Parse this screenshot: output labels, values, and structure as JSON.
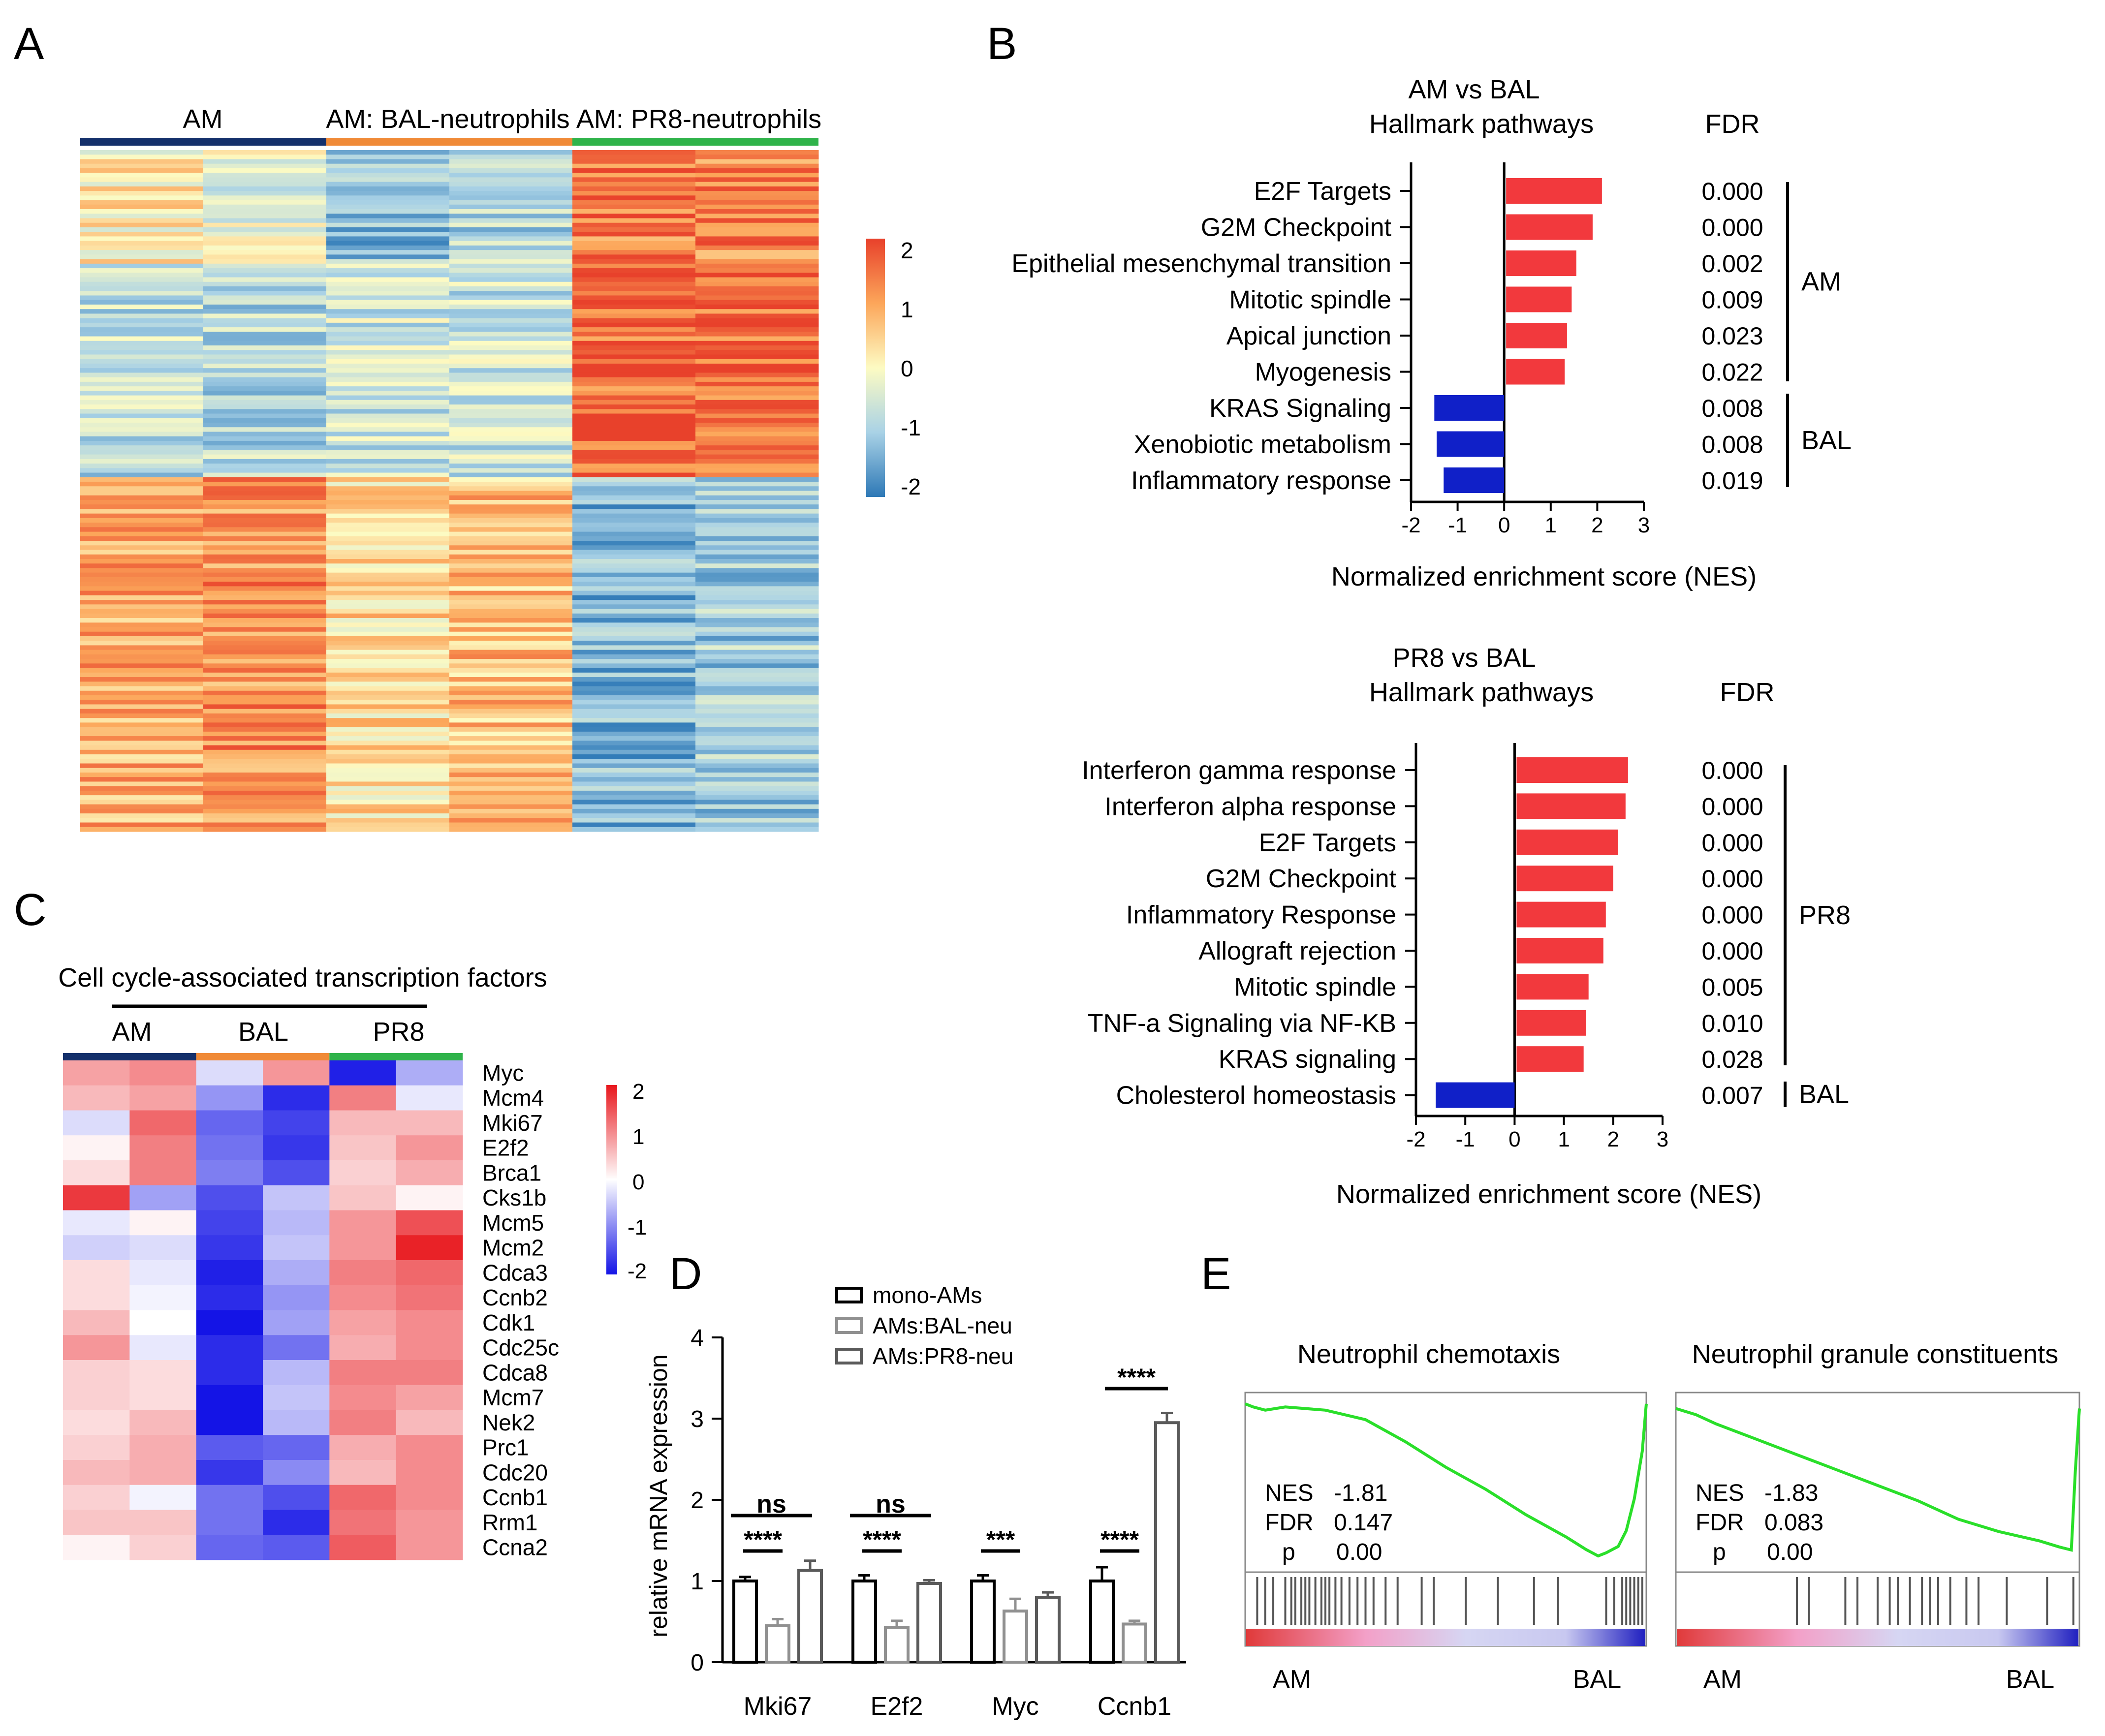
{
  "chart_data": [
    {
      "panel": "A",
      "type": "heatmap",
      "groups": [
        "AM",
        "AM: BAL-neutrophils",
        "AM: PR8-neutrophils"
      ],
      "group_colors": [
        "#14306b",
        "#f08a37",
        "#2fb34a"
      ],
      "columns_per_group": 2,
      "rows_shown": "approximately 150 genes (individual gene labels not shown)",
      "colorbar": {
        "ticks": [
          "2",
          "1",
          "0",
          "-1",
          "-2"
        ],
        "range": [
          -2,
          2
        ]
      },
      "row_blocks": [
        {
          "name": "upper",
          "values": [
            0.2,
            -0.3,
            -1.2,
            -0.8,
            1.4,
            1.3
          ]
        },
        {
          "name": "middle",
          "values": [
            -0.7,
            -0.8,
            -0.6,
            -0.6,
            1.6,
            1.6
          ]
        },
        {
          "name": "lower",
          "values": [
            0.9,
            1.2,
            0.4,
            0.7,
            -1.3,
            -1.0
          ]
        }
      ]
    },
    {
      "panel": "B-top",
      "type": "bar",
      "orientation": "horizontal",
      "title": "AM vs BAL",
      "subtitle": "Hallmark pathways",
      "xlabel": "Normalized enrichment score (NES)",
      "xlim": [
        -2,
        3
      ],
      "xticks": [
        "-2",
        "-1",
        "0",
        "1",
        "2",
        "3"
      ],
      "fdr_header": "FDR",
      "categories": [
        "E2F Targets",
        "G2M Checkpoint",
        "Epithelial mesenchymal transition",
        "Mitotic spindle",
        "Apical junction",
        "Myogenesis",
        "KRAS Signaling",
        "Xenobiotic metabolism",
        "Inflammatory response"
      ],
      "values": [
        2.1,
        1.9,
        1.55,
        1.45,
        1.35,
        1.3,
        -1.5,
        -1.45,
        -1.3
      ],
      "fdr": [
        "0.000",
        "0.000",
        "0.002",
        "0.009",
        "0.023",
        "0.022",
        "0.008",
        "0.008",
        "0.019"
      ],
      "bracket_labels": [
        "AM",
        "BAL"
      ],
      "colors": {
        "positive": "#f2393d",
        "negative": "#1020c8"
      }
    },
    {
      "panel": "B-bottom",
      "type": "bar",
      "orientation": "horizontal",
      "title": "PR8 vs BAL",
      "subtitle": "Hallmark pathways",
      "xlabel": "Normalized enrichment score (NES)",
      "xlim": [
        -2,
        3
      ],
      "xticks": [
        "-2",
        "-1",
        "0",
        "1",
        "2",
        "3"
      ],
      "fdr_header": "FDR",
      "categories": [
        "Interferon gamma response",
        "Interferon alpha response",
        "E2F Targets",
        "G2M Checkpoint",
        "Inflammatory Response",
        "Allograft rejection",
        "Mitotic spindle",
        "TNF-a Signaling via NF-KB",
        "KRAS signaling",
        "Cholesterol homeostasis"
      ],
      "values": [
        2.3,
        2.25,
        2.1,
        2.0,
        1.85,
        1.8,
        1.5,
        1.45,
        1.4,
        -1.6
      ],
      "fdr": [
        "0.000",
        "0.000",
        "0.000",
        "0.000",
        "0.000",
        "0.000",
        "0.005",
        "0.010",
        "0.028",
        "0.007"
      ],
      "bracket_labels": [
        "PR8",
        "BAL"
      ],
      "colors": {
        "positive": "#f2393d",
        "negative": "#1020c8"
      }
    },
    {
      "panel": "C",
      "type": "heatmap",
      "title": "Cell cycle-associated transcription factors",
      "groups": [
        "AM",
        "BAL",
        "PR8"
      ],
      "group_colors": [
        "#14306b",
        "#f08a37",
        "#2fb34a"
      ],
      "rows": [
        "Myc",
        "Mcm4",
        "Mki67",
        "E2f2",
        "Brca1",
        "Cks1b",
        "Mcm5",
        "Mcm2",
        "Cdca3",
        "Ccnb2",
        "Cdk1",
        "Cdc25c",
        "Cdca8",
        "Mcm7",
        "Nek2",
        "Prc1",
        "Cdc20",
        "Ccnb1",
        "Rrm1",
        "Ccna2"
      ],
      "values": [
        [
          0.8,
          1.0,
          -0.3,
          0.9,
          -1.9,
          -0.7
        ],
        [
          0.6,
          0.8,
          -0.9,
          -1.8,
          1.1,
          -0.2
        ],
        [
          -0.3,
          1.3,
          -1.3,
          -1.6,
          0.6,
          0.6
        ],
        [
          0.1,
          1.1,
          -1.2,
          -1.7,
          0.5,
          0.9
        ],
        [
          0.3,
          1.1,
          -1.1,
          -1.5,
          0.4,
          0.7
        ],
        [
          1.7,
          -0.8,
          -1.5,
          -0.5,
          0.5,
          0.1
        ],
        [
          -0.2,
          0.1,
          -1.6,
          -0.6,
          0.9,
          1.5
        ],
        [
          -0.4,
          -0.3,
          -1.7,
          -0.5,
          0.9,
          1.9
        ],
        [
          0.3,
          -0.2,
          -1.9,
          -0.7,
          1.1,
          1.3
        ],
        [
          0.3,
          -0.1,
          -1.8,
          -0.9,
          1.0,
          1.2
        ],
        [
          0.6,
          0.0,
          -2.0,
          -0.8,
          0.8,
          1.0
        ],
        [
          0.9,
          -0.2,
          -1.8,
          -1.2,
          0.7,
          1.0
        ],
        [
          0.4,
          0.3,
          -1.8,
          -0.6,
          1.1,
          1.1
        ],
        [
          0.4,
          0.3,
          -2.0,
          -0.5,
          1.0,
          0.8
        ],
        [
          0.3,
          0.6,
          -2.0,
          -0.6,
          1.1,
          0.6
        ],
        [
          0.4,
          0.7,
          -1.4,
          -1.3,
          0.7,
          1.0
        ],
        [
          0.6,
          0.7,
          -1.7,
          -1.0,
          0.6,
          1.0
        ],
        [
          0.4,
          -0.1,
          -1.2,
          -1.5,
          1.3,
          1.0
        ],
        [
          0.5,
          0.5,
          -1.2,
          -1.8,
          1.2,
          0.9
        ],
        [
          0.1,
          0.4,
          -1.3,
          -1.4,
          1.4,
          0.9
        ]
      ],
      "colorbar": {
        "ticks": [
          "2",
          "1",
          "0",
          "-1",
          "-2"
        ],
        "range": [
          -2,
          2
        ]
      }
    },
    {
      "panel": "D",
      "type": "bar",
      "ylabel": "relative mRNA expression",
      "ylim": [
        0,
        4
      ],
      "yticks": [
        "0",
        "1",
        "2",
        "3",
        "4"
      ],
      "categories": [
        "Mki67",
        "E2f2",
        "Myc",
        "Ccnb1"
      ],
      "series": [
        {
          "name": "mono-AMs",
          "values": [
            1.0,
            1.0,
            1.0,
            1.0
          ],
          "errors": [
            0.05,
            0.07,
            0.07,
            0.17
          ],
          "color": "#000000"
        },
        {
          "name": "AMs:BAL-neu",
          "values": [
            0.45,
            0.43,
            0.63,
            0.47
          ],
          "errors": [
            0.08,
            0.08,
            0.15,
            0.04
          ],
          "color": "#909090"
        },
        {
          "name": "AMs:PR8-neu",
          "values": [
            1.13,
            0.97,
            0.8,
            2.95
          ],
          "errors": [
            0.12,
            0.04,
            0.06,
            0.12
          ],
          "color": "#5a5a5a"
        }
      ],
      "annotations": [
        {
          "category": "Mki67",
          "pair": "mono vs BAL",
          "label": "****"
        },
        {
          "category": "Mki67",
          "pair": "mono vs PR8",
          "label": "ns"
        },
        {
          "category": "E2f2",
          "pair": "mono vs BAL",
          "label": "****"
        },
        {
          "category": "E2f2",
          "pair": "mono vs PR8",
          "label": "ns"
        },
        {
          "category": "Myc",
          "pair": "mono vs BAL",
          "label": "***"
        },
        {
          "category": "Ccnb1",
          "pair": "mono vs BAL",
          "label": "****"
        },
        {
          "category": "Ccnb1",
          "pair": "BAL vs PR8",
          "label": "****"
        }
      ]
    },
    {
      "panel": "E-1",
      "type": "line",
      "title": "Neutrophil chemotaxis",
      "stats": [
        {
          "label": "NES",
          "value": "-1.81"
        },
        {
          "label": "FDR",
          "value": "0.147"
        },
        {
          "label": "p",
          "value": "0.00"
        }
      ],
      "x": [
        0,
        0.02,
        0.05,
        0.1,
        0.2,
        0.3,
        0.4,
        0.5,
        0.6,
        0.7,
        0.8,
        0.85,
        0.88,
        0.9,
        0.93,
        0.95,
        0.97,
        0.99,
        1.0
      ],
      "y": [
        0.0,
        -0.01,
        -0.02,
        -0.01,
        -0.02,
        -0.05,
        -0.12,
        -0.2,
        -0.27,
        -0.35,
        -0.42,
        -0.46,
        -0.48,
        -0.47,
        -0.45,
        -0.4,
        -0.3,
        -0.15,
        0.0
      ],
      "ylim": [
        -0.5,
        0.02
      ],
      "hits": [
        0.03,
        0.05,
        0.07,
        0.1,
        0.115,
        0.125,
        0.14,
        0.15,
        0.16,
        0.175,
        0.19,
        0.2,
        0.21,
        0.225,
        0.24,
        0.26,
        0.28,
        0.3,
        0.32,
        0.35,
        0.38,
        0.44,
        0.47,
        0.55,
        0.63,
        0.72,
        0.78,
        0.9,
        0.92,
        0.94,
        0.95,
        0.96,
        0.97,
        0.98,
        0.99
      ],
      "xlabels": [
        "AM",
        "BAL"
      ]
    },
    {
      "panel": "E-2",
      "type": "line",
      "title": "Neutrophil granule constituents",
      "stats": [
        {
          "label": "NES",
          "value": "-1.83"
        },
        {
          "label": "FDR",
          "value": "0.083"
        },
        {
          "label": "p",
          "value": "0.00"
        }
      ],
      "x": [
        0,
        0.05,
        0.1,
        0.2,
        0.3,
        0.4,
        0.5,
        0.6,
        0.7,
        0.8,
        0.9,
        0.95,
        0.98,
        0.99,
        1.0
      ],
      "y": [
        0.0,
        -0.02,
        -0.05,
        -0.1,
        -0.15,
        -0.2,
        -0.25,
        -0.3,
        -0.36,
        -0.4,
        -0.43,
        -0.45,
        -0.46,
        -0.2,
        0.0
      ],
      "ylim": [
        -0.5,
        0.02
      ],
      "hits": [
        0.3,
        0.33,
        0.42,
        0.45,
        0.5,
        0.53,
        0.55,
        0.58,
        0.61,
        0.63,
        0.65,
        0.68,
        0.72,
        0.75,
        0.82,
        0.92,
        0.985
      ],
      "xlabels": [
        "AM",
        "BAL"
      ]
    }
  ],
  "panel_labels": [
    "A",
    "B",
    "C",
    "D",
    "E"
  ]
}
